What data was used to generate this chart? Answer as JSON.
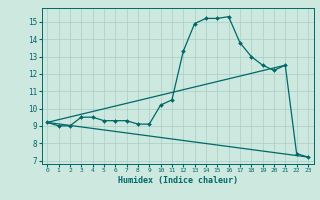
{
  "xlabel": "Humidex (Indice chaleur)",
  "ylabel": "",
  "bg_color": "#cce8df",
  "line_color": "#006868",
  "grid_color": "#aaccc4",
  "xlim": [
    -0.5,
    23.5
  ],
  "ylim": [
    6.8,
    15.8
  ],
  "yticks": [
    7,
    8,
    9,
    10,
    11,
    12,
    13,
    14,
    15
  ],
  "xticks": [
    0,
    1,
    2,
    3,
    4,
    5,
    6,
    7,
    8,
    9,
    10,
    11,
    12,
    13,
    14,
    15,
    16,
    17,
    18,
    19,
    20,
    21,
    22,
    23
  ],
  "line1_x": [
    0,
    1,
    2,
    3,
    4,
    5,
    6,
    7,
    8,
    9,
    10,
    11,
    12,
    13,
    14,
    15,
    16,
    17,
    18,
    19,
    20,
    21,
    22,
    23
  ],
  "line1_y": [
    9.2,
    9.0,
    9.0,
    9.5,
    9.5,
    9.3,
    9.3,
    9.3,
    9.1,
    9.1,
    10.2,
    10.5,
    13.3,
    14.9,
    15.2,
    15.2,
    15.3,
    13.8,
    13.0,
    12.5,
    12.2,
    12.5,
    7.4,
    7.2
  ],
  "line2_x": [
    0,
    21
  ],
  "line2_y": [
    9.2,
    12.5
  ],
  "line3_x": [
    0,
    23
  ],
  "line3_y": [
    9.2,
    7.2
  ]
}
